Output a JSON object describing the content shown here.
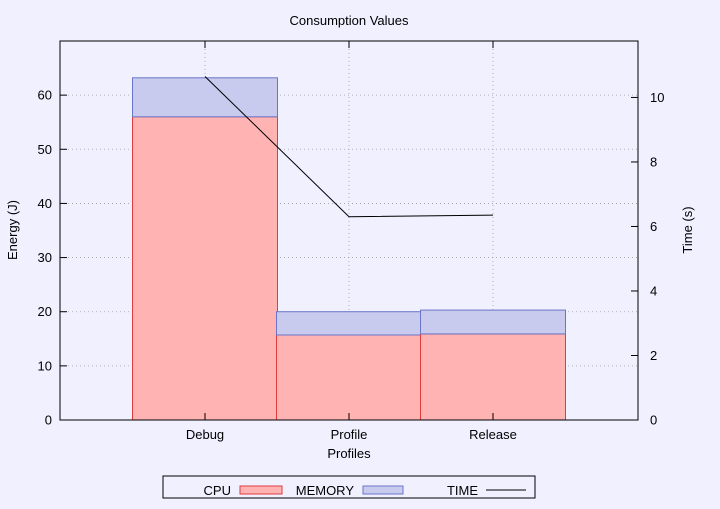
{
  "chart_data": {
    "type": "bar",
    "stacked": true,
    "title": "Consumption Values",
    "xlabel": "Profiles",
    "ylabel": "Energy (J)",
    "y2label": "Time (s)",
    "categories": [
      "Debug",
      "Profile",
      "Release"
    ],
    "ylim": [
      0,
      70
    ],
    "y2lim": [
      0,
      11.75
    ],
    "yticks": [
      0,
      10,
      20,
      30,
      40,
      50,
      60
    ],
    "y2ticks": [
      0,
      2,
      4,
      6,
      8,
      10
    ],
    "grid": true,
    "legend_position": "bottom-center",
    "series": [
      {
        "name": "CPU",
        "kind": "bar",
        "axis": "left",
        "values": [
          56,
          15.7,
          15.9
        ],
        "color": "#ffb3b3",
        "stroke": "#e03c3c"
      },
      {
        "name": "MEMORY",
        "kind": "bar",
        "axis": "left",
        "values": [
          7.2,
          4.3,
          4.4
        ],
        "color": "#c8cbee",
        "stroke": "#6b74c8"
      },
      {
        "name": "TIME",
        "kind": "line",
        "axis": "right",
        "values": [
          10.65,
          6.3,
          6.35
        ],
        "color": "#000000"
      }
    ]
  }
}
